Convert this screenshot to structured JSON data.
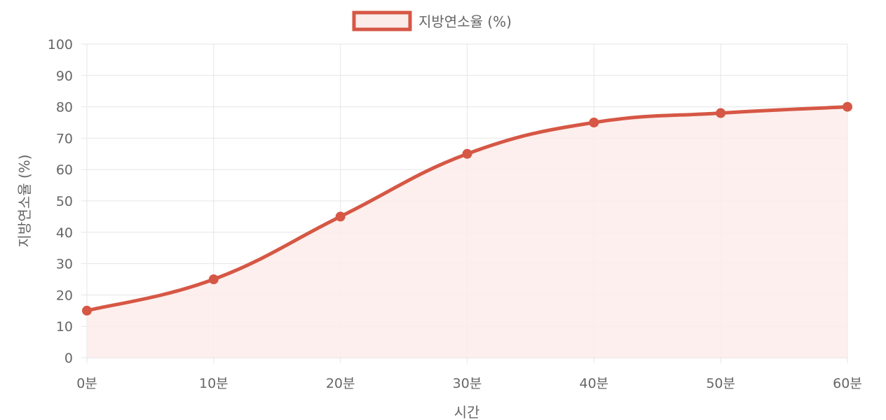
{
  "chart_data": {
    "type": "area",
    "categories": [
      "0분",
      "10분",
      "20분",
      "30분",
      "40분",
      "50분",
      "60분"
    ],
    "series": [
      {
        "name": "지방연소율 (%)",
        "values": [
          15,
          25,
          45,
          65,
          75,
          78,
          80
        ]
      }
    ],
    "xlabel": "시간",
    "ylabel": "지방연소율 (%)",
    "ylim": [
      0,
      100
    ],
    "yticks": [
      "0",
      "10",
      "20",
      "30",
      "40",
      "50",
      "60",
      "70",
      "80",
      "90",
      "100"
    ],
    "grid": true,
    "legend_position": "top-center",
    "colors": {
      "line": "#d65745",
      "fill": "#fbecea",
      "grid": "#e6e6e6",
      "text": "#666666"
    }
  }
}
